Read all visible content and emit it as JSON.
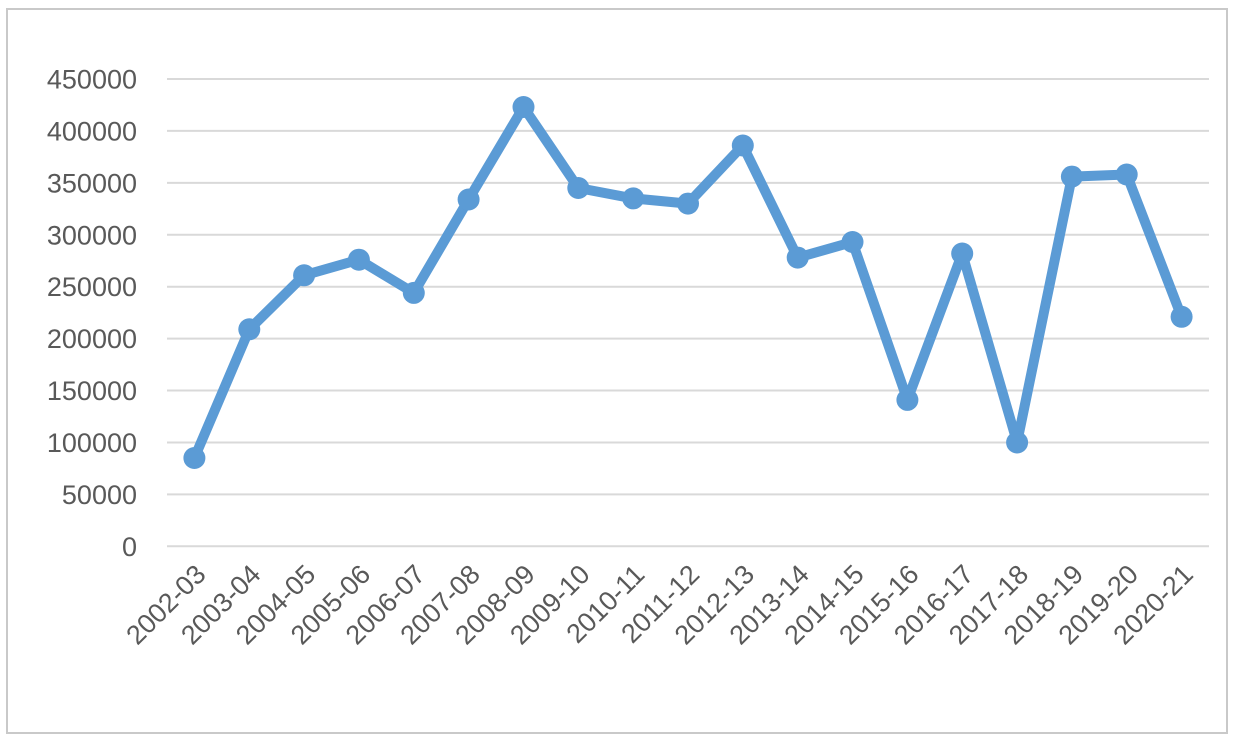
{
  "chart_data": {
    "type": "line",
    "title": "",
    "xlabel": "",
    "ylabel": "",
    "categories": [
      "2002-03",
      "2003-04",
      "2004-05",
      "2005-06",
      "2006-07",
      "2007-08",
      "2008-09",
      "2009-10",
      "2010-11",
      "2011-12",
      "2012-13",
      "2013-14",
      "2014-15",
      "2015-16",
      "2016-17",
      "2017-18",
      "2018-19",
      "2019-20",
      "2020-21"
    ],
    "values": [
      85000,
      209000,
      261000,
      276000,
      244000,
      334000,
      423000,
      345000,
      335000,
      330000,
      386000,
      278000,
      293000,
      141000,
      282000,
      100000,
      356000,
      358000,
      221000
    ],
    "ylim": [
      0,
      450000
    ],
    "ytick_step": 50000,
    "yticks": [
      0,
      50000,
      100000,
      150000,
      200000,
      250000,
      300000,
      350000,
      400000,
      450000
    ],
    "grid": true,
    "legend": false,
    "marker": "circle",
    "x_label_rotation_deg": -45
  },
  "style": {
    "line_color": "#5b9bd5",
    "marker_color": "#5b9bd5",
    "gridline_color": "#d9d9d9",
    "axis_label_color": "#595959",
    "background": "#ffffff",
    "frame_border_color": "#c9c9c9"
  }
}
